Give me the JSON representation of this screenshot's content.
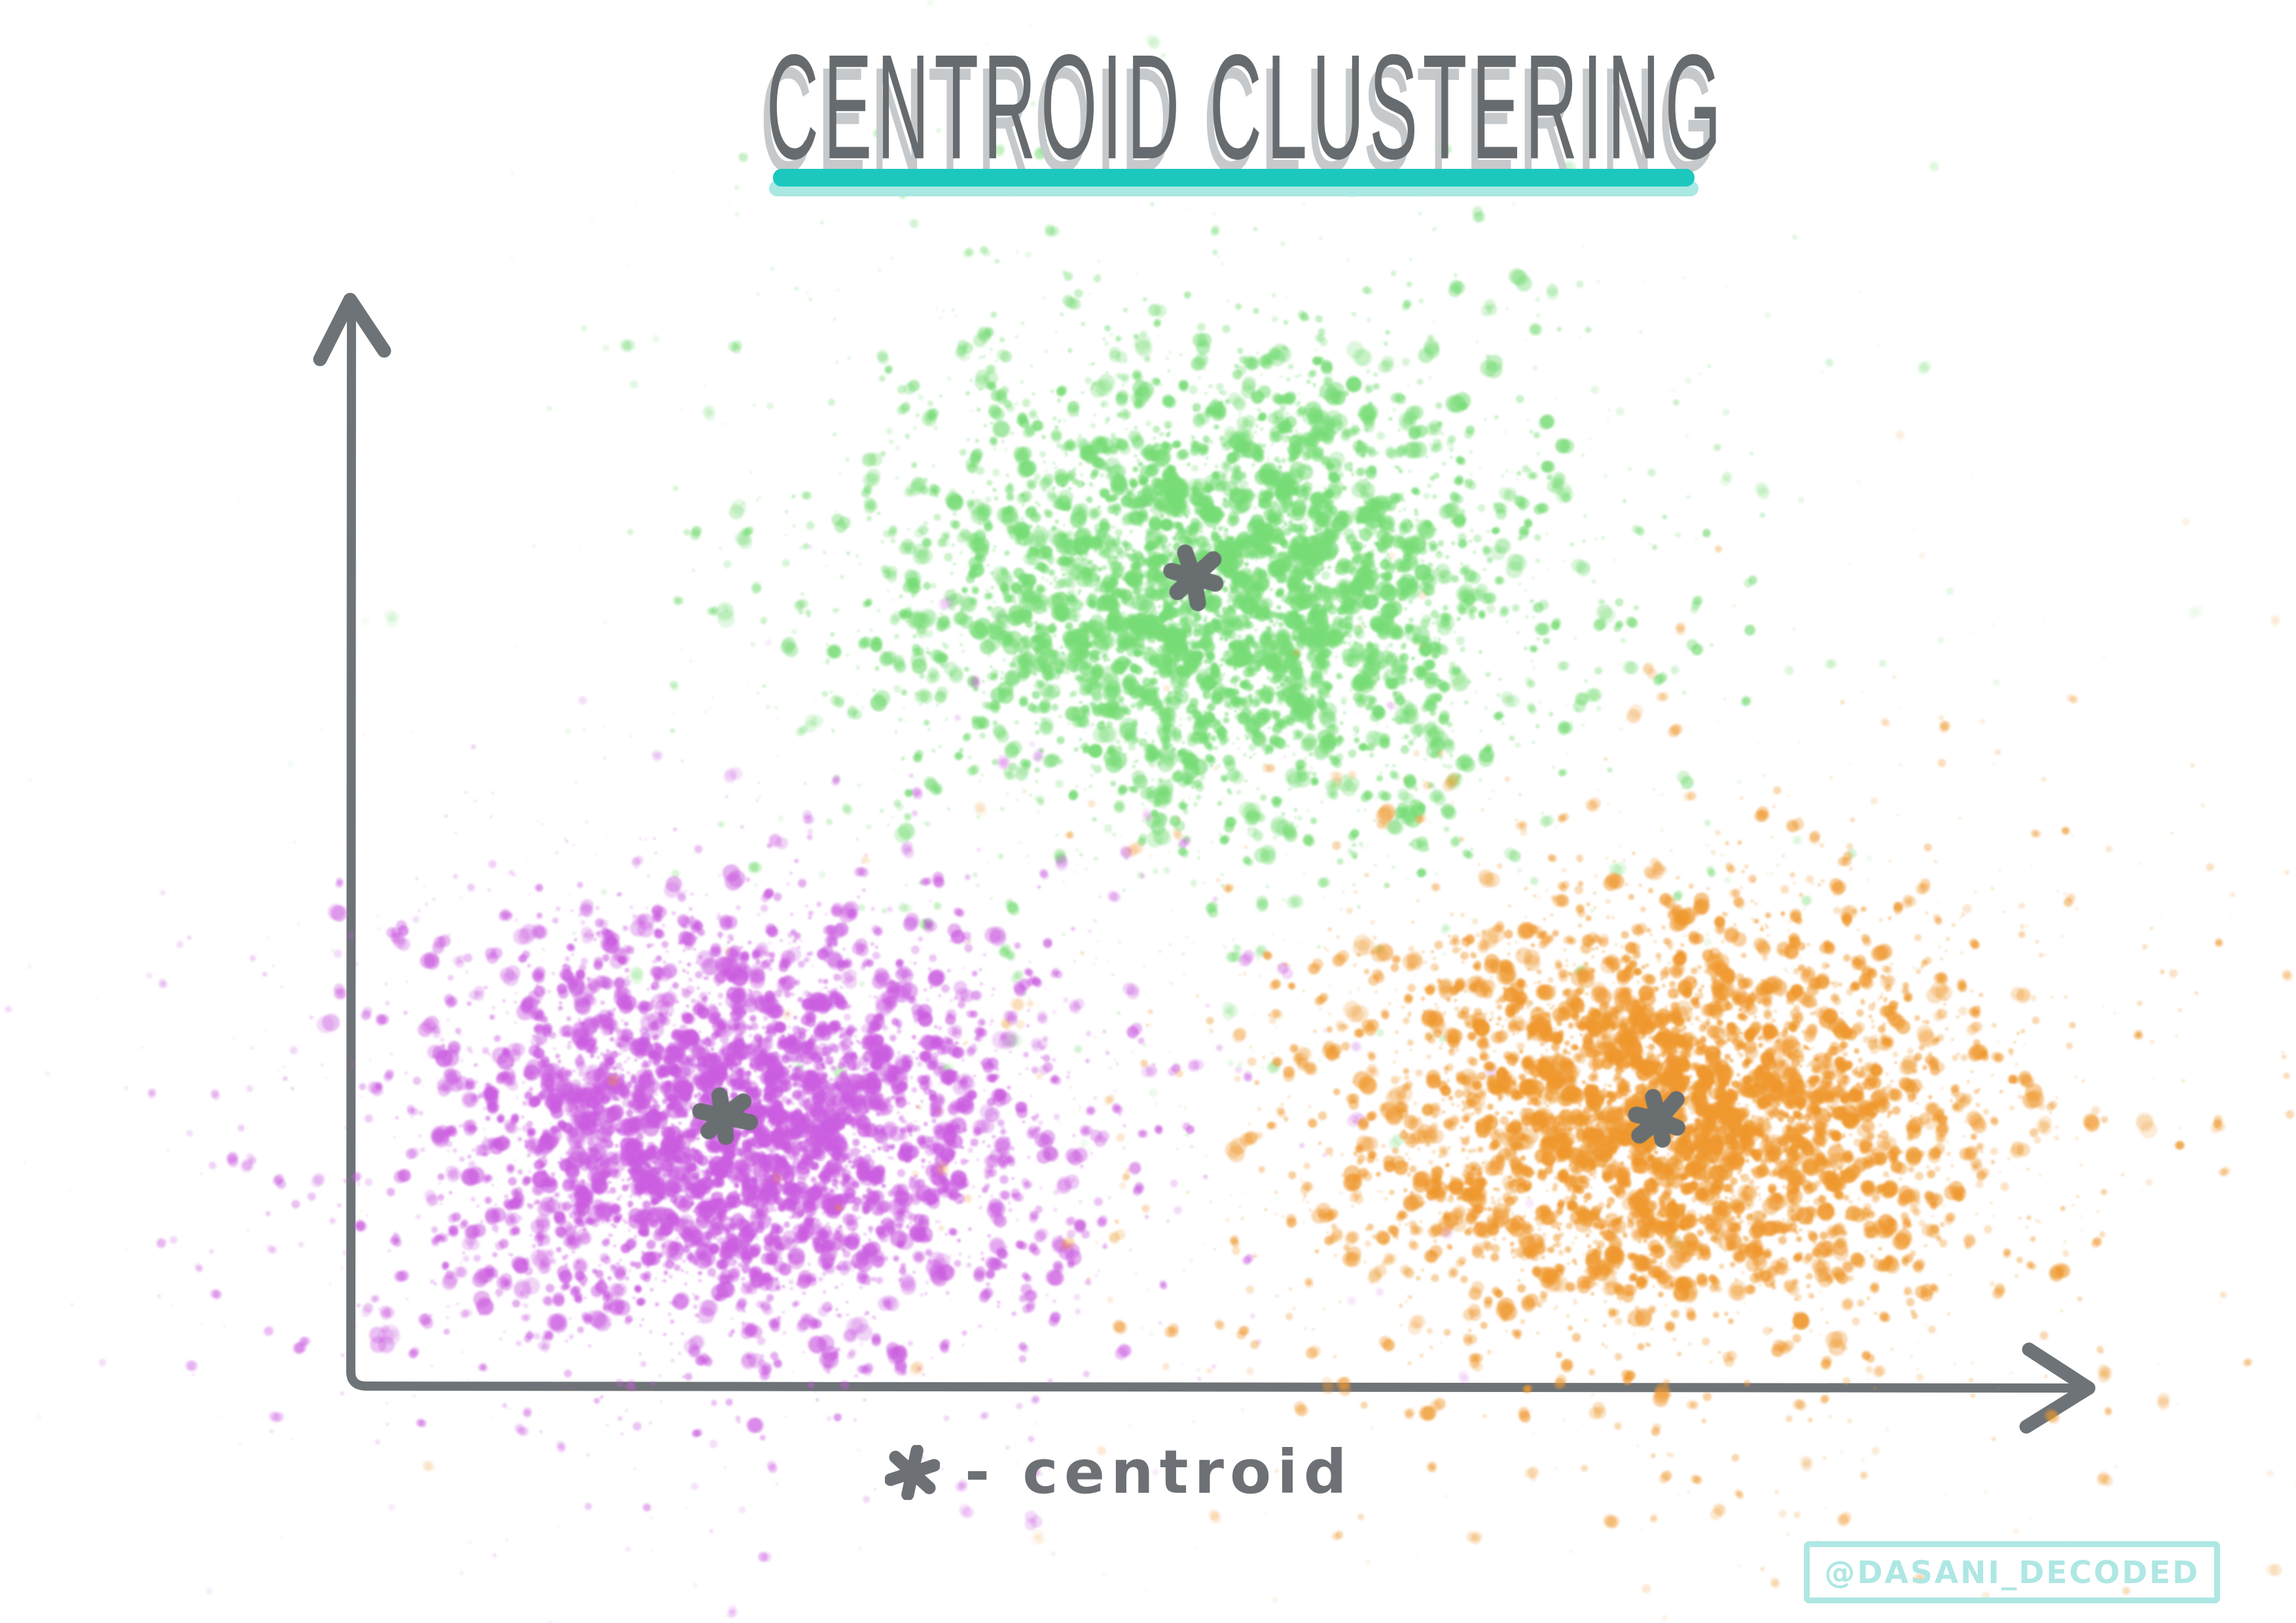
{
  "page": {
    "background_color": "#ffffff"
  },
  "title": {
    "text": "CENTROID CLUSTERING",
    "color": "#666b6f",
    "shadow_color": "#c6c9cb",
    "underline_color": "#1cc8be",
    "underline_shadow_color": "#a9e8e3"
  },
  "axes": {
    "color": "#6e7377",
    "style": "hand-drawn arrows, no ticks, no tick labels"
  },
  "legend": {
    "marker": "asterisk",
    "label": "- centroid",
    "color": "#6d7175"
  },
  "watermark": {
    "text": "@DASANI_DECODED",
    "color": "#aee7e3"
  },
  "chart_data": {
    "type": "scatter",
    "title": "CENTROID CLUSTERING",
    "xlabel": "",
    "ylabel": "",
    "x_range": [
      0,
      100
    ],
    "y_range": [
      0,
      100
    ],
    "grid": false,
    "legend_note": "* - centroid",
    "legend_position": "below-x-axis",
    "series": [
      {
        "name": "green cluster",
        "color": "#77dc76",
        "center": [
          49.7,
          73.1
        ],
        "spread_sigma": [
          10.6,
          12.7
        ],
        "n_points": 3800,
        "centroid": [
          48.5,
          74.5
        ],
        "seed": 101
      },
      {
        "name": "purple cluster",
        "color": "#cb5ee0",
        "center": [
          22.0,
          23.6
        ],
        "spread_sigma": [
          9.6,
          10.9
        ],
        "n_points": 3700,
        "centroid": [
          21.4,
          24.7
        ],
        "seed": 202
      },
      {
        "name": "orange cluster",
        "color": "#ef982e",
        "center": [
          75.8,
          24.8
        ],
        "spread_sigma": [
          10.8,
          11.5
        ],
        "n_points": 3900,
        "centroid": [
          75.3,
          24.4
        ],
        "seed": 303
      }
    ],
    "centroid_marker": {
      "shape": "hand-drawn asterisk",
      "color": "#696e70"
    }
  }
}
